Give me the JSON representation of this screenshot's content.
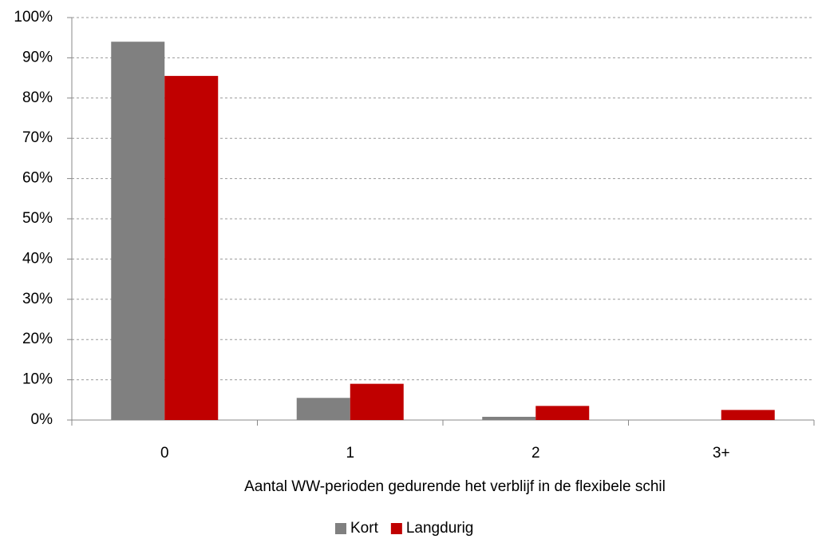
{
  "chart_data": {
    "type": "bar",
    "categories": [
      "0",
      "1",
      "2",
      "3+"
    ],
    "series": [
      {
        "name": "Kort",
        "color": "#808080",
        "values": [
          94,
          5.5,
          0.8,
          0
        ]
      },
      {
        "name": "Langdurig",
        "color": "#c00000",
        "values": [
          85.5,
          9,
          3.5,
          2.5
        ]
      }
    ],
    "x_label": "Aantal WW-perioden gedurende het verblijf in de flexibele schil",
    "ylim": [
      0,
      100
    ],
    "yticks": [
      {
        "value": 0,
        "label": "0%"
      },
      {
        "value": 10,
        "label": "10%"
      },
      {
        "value": 20,
        "label": "20%"
      },
      {
        "value": 30,
        "label": "30%"
      },
      {
        "value": 40,
        "label": "40%"
      },
      {
        "value": 50,
        "label": "50%"
      },
      {
        "value": 60,
        "label": "60%"
      },
      {
        "value": 70,
        "label": "70%"
      },
      {
        "value": 80,
        "label": "80%"
      },
      {
        "value": 90,
        "label": "90%"
      },
      {
        "value": 100,
        "label": "100%"
      }
    ],
    "grid": true,
    "legend": "bottom"
  }
}
